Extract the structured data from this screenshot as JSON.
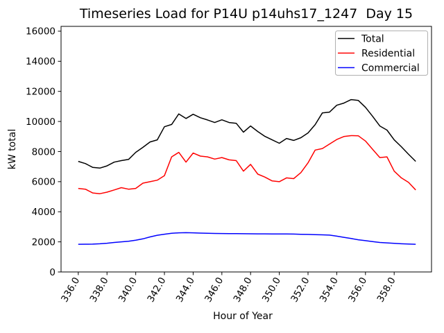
{
  "chart_data": {
    "type": "line",
    "title": "Timeseries Load for P14U p14uhs17_1247  Day 15",
    "xlabel": "Hour of Year",
    "ylabel": "kW total",
    "x_start": 336.0,
    "x_step": 0.5,
    "x_end": 359.5,
    "xlim": [
      334.8,
      360.6
    ],
    "ylim": [
      0,
      16320
    ],
    "grid": false,
    "xtick_values": [
      336,
      338,
      340,
      342,
      344,
      346,
      348,
      350,
      352,
      354,
      356,
      358
    ],
    "xtick_labels": [
      "336.0",
      "338.0",
      "340.0",
      "342.0",
      "344.0",
      "346.0",
      "348.0",
      "350.0",
      "352.0",
      "354.0",
      "356.0",
      "358.0"
    ],
    "ytick_values": [
      0,
      2000,
      4000,
      6000,
      8000,
      10000,
      12000,
      14000,
      16000
    ],
    "ytick_labels": [
      "0",
      "2000",
      "4000",
      "6000",
      "8000",
      "10000",
      "12000",
      "14000",
      "16000"
    ],
    "legend": {
      "position": "upper right",
      "entries": [
        "Total",
        "Residential",
        "Commercial"
      ]
    },
    "series": [
      {
        "name": "Total",
        "color": "#000000",
        "values": [
          7350,
          7200,
          6950,
          6900,
          7050,
          7300,
          7400,
          7480,
          7950,
          8280,
          8640,
          8780,
          9650,
          9800,
          10500,
          10200,
          10480,
          10250,
          10100,
          9930,
          10110,
          9930,
          9880,
          9290,
          9700,
          9330,
          9010,
          8780,
          8550,
          8870,
          8740,
          8920,
          9240,
          9790,
          10570,
          10620,
          11080,
          11220,
          11450,
          11400,
          10940,
          10340,
          9700,
          9430,
          8780,
          8320,
          7820,
          7350
        ]
      },
      {
        "name": "Residential",
        "color": "#ff0000",
        "values": [
          5550,
          5500,
          5250,
          5200,
          5300,
          5450,
          5600,
          5500,
          5550,
          5900,
          6000,
          6100,
          6400,
          7650,
          7950,
          7300,
          7900,
          7700,
          7650,
          7500,
          7600,
          7450,
          7400,
          6700,
          7150,
          6500,
          6300,
          6050,
          6000,
          6250,
          6200,
          6600,
          7250,
          8100,
          8200,
          8500,
          8800,
          9000,
          9060,
          9050,
          8700,
          8150,
          7600,
          7650,
          6700,
          6250,
          5950,
          5450
        ]
      },
      {
        "name": "Commercial",
        "color": "#0000ff",
        "values": [
          1840,
          1845,
          1850,
          1870,
          1910,
          1960,
          2000,
          2040,
          2110,
          2200,
          2330,
          2440,
          2510,
          2570,
          2600,
          2610,
          2600,
          2580,
          2570,
          2560,
          2555,
          2550,
          2545,
          2540,
          2535,
          2530,
          2530,
          2525,
          2525,
          2520,
          2515,
          2505,
          2495,
          2480,
          2465,
          2450,
          2380,
          2300,
          2220,
          2140,
          2080,
          2020,
          1960,
          1930,
          1900,
          1870,
          1855,
          1840
        ]
      }
    ]
  }
}
